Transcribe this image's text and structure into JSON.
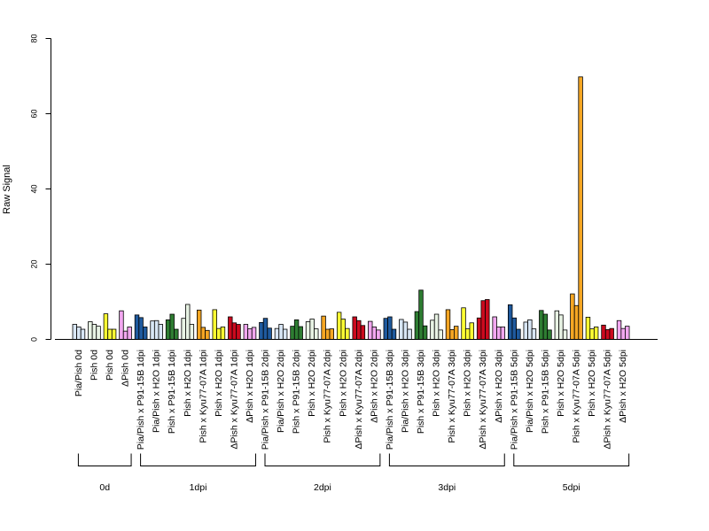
{
  "chart_data": {
    "type": "bar",
    "ylabel": "Raw Signal",
    "xlabel": "",
    "title": "",
    "ylim": [
      0,
      80
    ],
    "yticks": [
      0,
      20,
      40,
      60,
      80
    ],
    "grid": false,
    "legend": "none",
    "categories": [
      "Pia/Pish 0d",
      "Pish 0d",
      "Pish 0d",
      "ΔPish 0d",
      "Pia/Pish x P91-15B 1dpi",
      "Pia/Pish x H2O 1dpi",
      "Pish x P91-15B 1dpi",
      "Pish x H2O 1dpi",
      "Pish x Kyu77-07A 1dpi",
      "Pish x H2O 1dpi",
      "ΔPish x Kyu77-07A 1dpi",
      "ΔPish x H2O 1dpi",
      "Pia/Pish x P91-15B 2dpi",
      "Pia/Pish x H2O 2dpi",
      "Pish x P91-15B 2dpi",
      "Pish x H2O 2dpi",
      "Pish x Kyu77-07A 2dpi",
      "Pish x H2O 2dpi",
      "ΔPish x Kyu77-07A 2dpi",
      "ΔPish x H2O 2dpi",
      "Pia/Pish x P91-15B 3dpi",
      "Pia/Pish x H2O 3dpi",
      "Pish x P91-15B 3dpi",
      "Pish x H2O 3dpi",
      "Pish x Kyu77-07A 3dpi",
      "Pish x H2O 3dpi",
      "ΔPish x Kyu77-07A 3dpi",
      "ΔPish x H2O 3dpi",
      "Pia/Pish x P91-15B 5dpi",
      "Pia/Pish x H2O 5dpi",
      "Pish x P91-15B 5dpi",
      "Pish x H2O 5dpi",
      "Pish x Kyu77-07A 5dpi",
      "Pish x H2O 5dpi",
      "ΔPish x Kyu77-07A 5dpi",
      "ΔPish x H2O 5dpi"
    ],
    "colors": [
      "#d8e6f5",
      "#e8f3e4",
      "#ffff33",
      "#f2a7f0",
      "#1f5a9e",
      "#d8e6f5",
      "#2e7d32",
      "#e8f3e4",
      "#f5a623",
      "#ffff33",
      "#cc0a1e",
      "#f2a7f0",
      "#1f5a9e",
      "#d8e6f5",
      "#2e7d32",
      "#e8f3e4",
      "#f5a623",
      "#ffff33",
      "#cc0a1e",
      "#f2a7f0",
      "#1f5a9e",
      "#d8e6f5",
      "#2e7d32",
      "#e8f3e4",
      "#f5a623",
      "#ffff33",
      "#cc0a1e",
      "#f2a7f0",
      "#1f5a9e",
      "#d8e6f5",
      "#2e7d32",
      "#e8f3e4",
      "#f5a623",
      "#ffff33",
      "#cc0a1e",
      "#f2a7f0"
    ],
    "values": [
      [
        4.0,
        3.3,
        2.7
      ],
      [
        4.7,
        4.0,
        3.5
      ],
      [
        6.8,
        2.7,
        2.7
      ],
      [
        7.6,
        2.2,
        3.3
      ],
      [
        6.5,
        5.8,
        3.3
      ],
      [
        4.9,
        5.0,
        4.0
      ],
      [
        5.2,
        6.7,
        2.7
      ],
      [
        5.6,
        9.3,
        4.0
      ],
      [
        7.8,
        3.2,
        2.4
      ],
      [
        7.9,
        2.9,
        3.3
      ],
      [
        6.0,
        4.4,
        4.0
      ],
      [
        4.0,
        2.8,
        3.2
      ],
      [
        4.5,
        5.6,
        3.0
      ],
      [
        2.9,
        4.0,
        2.7
      ],
      [
        3.5,
        5.2,
        3.4
      ],
      [
        4.7,
        5.4,
        2.8
      ],
      [
        6.2,
        2.7,
        2.8
      ],
      [
        7.2,
        5.4,
        2.9
      ],
      [
        6.0,
        5.0,
        3.7
      ],
      [
        4.8,
        3.3,
        2.5
      ],
      [
        5.6,
        6.0,
        2.7
      ],
      [
        5.3,
        4.6,
        2.7
      ],
      [
        7.4,
        13.1,
        3.6
      ],
      [
        5.1,
        6.7,
        2.5
      ],
      [
        7.9,
        2.6,
        3.5
      ],
      [
        8.4,
        2.8,
        4.4
      ],
      [
        5.7,
        10.3,
        10.6
      ],
      [
        6.0,
        3.3,
        3.3
      ],
      [
        9.2,
        5.7,
        2.7
      ],
      [
        4.6,
        5.2,
        2.8
      ],
      [
        7.7,
        6.7,
        2.5
      ],
      [
        7.6,
        6.5,
        2.5
      ],
      [
        12.1,
        9.0,
        69.8
      ],
      [
        5.9,
        2.8,
        3.3
      ],
      [
        3.8,
        2.6,
        2.9
      ],
      [
        5.0,
        2.9,
        3.5
      ]
    ],
    "groups": [
      {
        "label": "0d",
        "start": 0,
        "end": 3
      },
      {
        "label": "1dpi",
        "start": 4,
        "end": 11
      },
      {
        "label": "2dpi",
        "start": 12,
        "end": 19
      },
      {
        "label": "3dpi",
        "start": 20,
        "end": 27
      },
      {
        "label": "5dpi",
        "start": 28,
        "end": 35
      }
    ]
  }
}
